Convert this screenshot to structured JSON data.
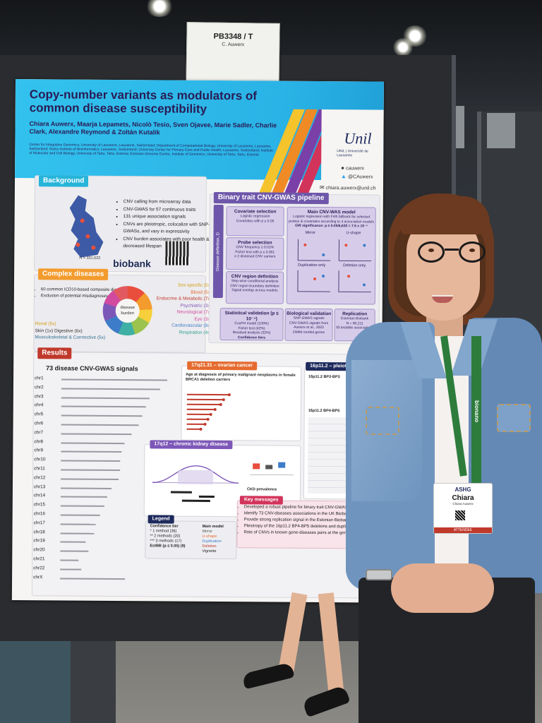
{
  "sign": {
    "id": "PB3348 / T",
    "name": "C. Auwerx"
  },
  "poster": {
    "title": "Copy-number variants as modulators of common disease susceptibility",
    "authors": "Chiara Auwerx, Maarja Lepamets, Nicolò Tesio, Sven Ojavee, Marie Sadler, Charlie Clark, Alexandre Reymond & Zoltán Kutalik",
    "affiliations": "Center for Integrative Genomics, University of Lausanne, Lausanne, Switzerland; Department of Computational Biology, University of Lausanne, Lausanne, Switzerland; Swiss Institute of Bioinformatics, Lausanne, Switzerland; University Center for Primary Care and Public Health, Lausanne, Switzerland; Institute of Molecular and Cell Biology, University of Tartu, Tartu, Estonia; Estonian Genome Centre, Institute of Genomics, University of Tartu, Tartu, Estonia",
    "logo": "Unil",
    "logo_sub": "UNIL | Université de Lausanne",
    "github": "cauwerx",
    "twitter": "@CAuwerx",
    "email": "chiara.auwerx@unil.ch",
    "background": {
      "heading": "Background",
      "bullets": [
        "CNV calling from microarray data",
        "CNV-GWAS for 57 continuous traits",
        "131 unique association signals",
        "CNVs are pleiotropic, colocalize with SNP-GWASs, and vary in expressivity",
        "CNV burden associates with poor health & decreased lifespan"
      ],
      "n_label": "N = 331,522",
      "biobank": "biobank"
    },
    "complex": {
      "heading": "Complex diseases",
      "bullets": [
        "60 common ICD10-based composite diagnoses",
        "Exclusion of potential misdiagnoses from controls"
      ],
      "left_list": [
        "Renal (5x)",
        "Skin (1x)   Digestive (6x)",
        "Musculoskeletal & Connective (5x)"
      ],
      "right_list": [
        "Sex-specific (5x)",
        "Blood (5x)",
        "Endocrine & Metabolic (7x)",
        "Psychiatric (3x)",
        "Neurological (7x)",
        "Eye (3x)",
        "Cardiovascular (9x)",
        "Respiration (4x)"
      ],
      "donut_label_1": "disease",
      "donut_label_2": "burden"
    },
    "pipeline": {
      "heading": "Binary trait CNV-GWAS pipeline",
      "side_label": "Disease definition, D",
      "covariate_title": "Covariate selection",
      "covariate_lines": [
        "Logistic regression",
        "Covariates with p ≤ 0.05"
      ],
      "probe_title": "Probe selection",
      "probe_lines": [
        "CNV frequency ≥ 0.01%",
        "Fisher test with p ≤ 0.001",
        "≥ 2 diseased CNV carriers"
      ],
      "region_title": "CNV region definition",
      "region_lines": [
        "Step-wise conditional analysis",
        "CNV region boundary definition",
        "Signal overlap across models"
      ],
      "main_title": "Main CNV-WAS model",
      "main_lines": [
        "Logistic regression with Firth fallback for selected probes & covariates according to 4 association models",
        "GW significance: p ≤ 0.05/6,633 = 7.5 x 10⁻⁶"
      ],
      "mini_labels": [
        "Mirror",
        "U-shape",
        "Duplication-only",
        "Deletion-only"
      ],
      "stat_title": "Statistical validation (p ≤ 10⁻⁴)",
      "stat_items": [
        "CoxPH model (100%)",
        "Fisher test (42%)",
        "Residual analysis (32%)"
      ],
      "conf_label": "Confidence tiers",
      "bio_title": "Biological validation",
      "bio_lines": [
        "SNP-GWAS signals",
        "CNV-GWAS signals from Auwerx et al., 2022",
        "OMIM morbid genes"
      ],
      "rep_title": "Replication",
      "rep_lines": [
        "Estonian Biobank",
        "N = 90,211",
        "33 testable associations"
      ]
    },
    "results": {
      "heading": "Results",
      "signals_title": "73 disease CNV-GWAS signals",
      "chromosomes": [
        "chr1",
        "chr2",
        "chr3",
        "chr4",
        "chr5",
        "chr6",
        "chr7",
        "chr8",
        "chr9",
        "chr10",
        "chr11",
        "chr12",
        "chr13",
        "chr14",
        "chr15",
        "chr16",
        "chr17",
        "chr18",
        "chr19",
        "chr20",
        "chr21",
        "chr22",
        "chrX"
      ],
      "ovarian_title": "17q21.31 – ovarian cancer",
      "ovarian_text": "Age at diagnosis of primary malignant neoplasms in female BRCA1 deletion carriers",
      "kidney_title": "17q12 – chronic kidney disease",
      "ckd_title": "CKD prevalence",
      "pleio_title": "16p11.2 – pleiotropy",
      "pleio_sub1": "16p11.2 BP2-BP3",
      "pleio_sub2": "16p11.2 BP4-BP5",
      "key_title": "Key messages",
      "key_messages": [
        "Developed a robust pipeline for binary trait CNV-GWAS",
        "Identify 73 CNV-diseases associations in the UK Biobank",
        "Provide strong replication signal in the Estonian Biobank",
        "Pleiotropy of the 16p11.2 BP4-BP5 deletions and duplications",
        "Role of CNVs in known gene-diseases pairs at the general population level"
      ],
      "legend_title": "Legend",
      "legend_tier_title": "Confidence tier",
      "legend_tiers": [
        "* 1 method (36)",
        "** 2 methods (20)",
        "*** 3 methods (17)",
        "EstBB (p ≤ 0.05) (9)"
      ],
      "legend_model_title": "Main model",
      "legend_models": [
        "Mirror",
        "U-shape",
        "Duplication",
        "Deletion",
        "Vignette"
      ]
    }
  },
  "badge": {
    "org": "ASHG",
    "name": "Chiara",
    "full": "Chiara Auwerx",
    "role": "ATTENDEE"
  },
  "lanyard_text": "bionano",
  "colors": {
    "poster_header": "#2ab3e6",
    "title_navy": "#2a1b55",
    "section_teal": "#27b4d9",
    "section_orange": "#f39b2d",
    "section_purple": "#6e57aa",
    "section_red": "#c0392b",
    "jacket": "#6f95bf",
    "hair": "#6b3a20"
  }
}
